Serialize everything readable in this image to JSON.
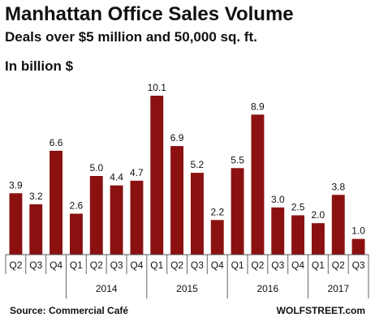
{
  "chart_data": {
    "type": "bar",
    "title": "Manhattan Office Sales Volume",
    "subtitle": "Deals over $5 million and 50,000 sq. ft.",
    "unit_label": "In billion $",
    "categories": [
      "Q2",
      "Q3",
      "Q4",
      "Q1",
      "Q2",
      "Q3",
      "Q4",
      "Q1",
      "Q2",
      "Q3",
      "Q4",
      "Q1",
      "Q2",
      "Q3",
      "Q4",
      "Q1",
      "Q2",
      "Q3"
    ],
    "values": [
      3.9,
      3.2,
      6.6,
      2.6,
      5.0,
      4.4,
      4.7,
      10.1,
      6.9,
      5.2,
      2.2,
      5.5,
      8.9,
      3.0,
      2.5,
      2.0,
      3.8,
      1.0
    ],
    "value_labels": [
      "3.9",
      "3.2",
      "6.6",
      "2.6",
      "5.0",
      "4.4",
      "4.7",
      "10.1",
      "6.9",
      "5.2",
      "2.2",
      "5.5",
      "8.9",
      "3.0",
      "2.5",
      "2.0",
      "3.8",
      "1.0"
    ],
    "year_groups": [
      {
        "label": "2014",
        "start": 3,
        "end": 6
      },
      {
        "label": "2015",
        "start": 7,
        "end": 10
      },
      {
        "label": "2016",
        "start": 11,
        "end": 14
      },
      {
        "label": "2017",
        "start": 15,
        "end": 17
      }
    ],
    "ylim": [
      0,
      10.1
    ],
    "bar_color": "#8B1111",
    "grid": false,
    "legend": "none"
  },
  "footer": {
    "source": "Source: Commercial Café",
    "brand": "WOLFSTREET.com"
  }
}
